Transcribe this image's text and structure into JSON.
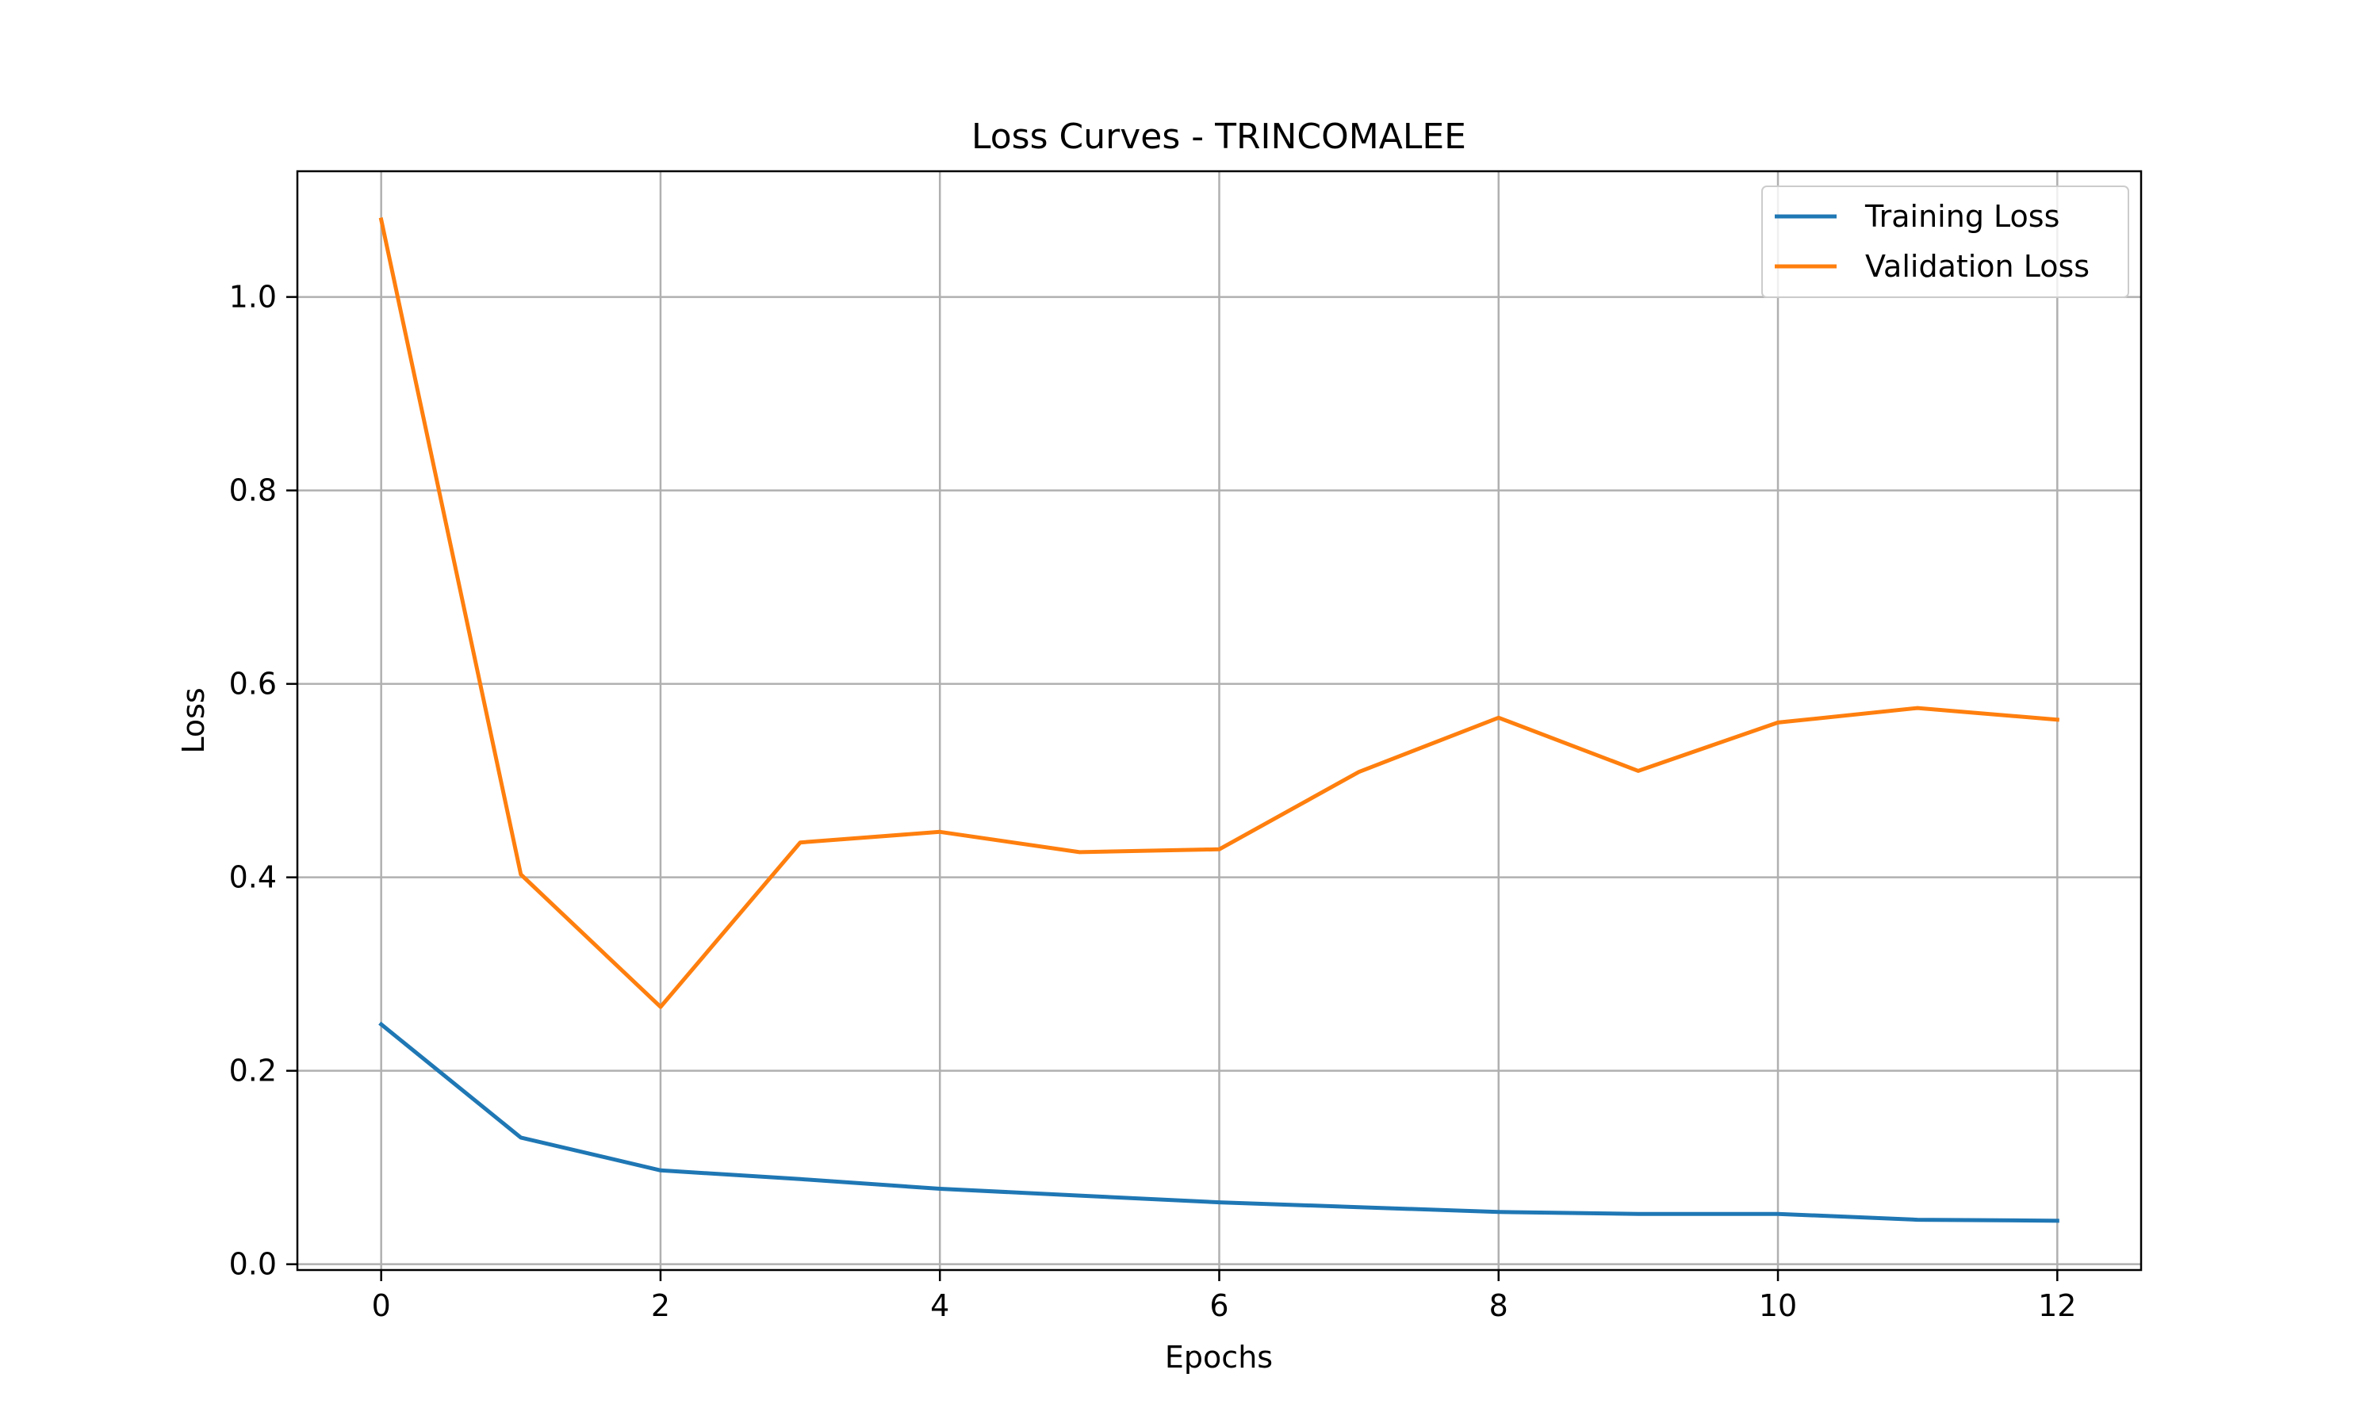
{
  "chart_data": {
    "type": "line",
    "title": "Loss Curves - TRINCOMALEE",
    "xlabel": "Epochs",
    "ylabel": "Loss",
    "x": [
      0,
      1,
      2,
      3,
      4,
      5,
      6,
      7,
      8,
      9,
      10,
      11,
      12
    ],
    "xlim": [
      -0.6,
      12.6
    ],
    "ylim": [
      -0.006,
      1.13
    ],
    "xticks": [
      0,
      2,
      4,
      6,
      8,
      10,
      12
    ],
    "xtick_labels": [
      "0",
      "2",
      "4",
      "6",
      "8",
      "10",
      "12"
    ],
    "yticks": [
      0.0,
      0.2,
      0.4,
      0.6,
      0.8,
      1.0
    ],
    "ytick_labels": [
      "0.0",
      "0.2",
      "0.4",
      "0.6",
      "0.8",
      "1.0"
    ],
    "grid": true,
    "legend_position": "top-right",
    "series": [
      {
        "name": "Training Loss",
        "color": "#1f77b4",
        "values": [
          0.248,
          0.131,
          0.097,
          0.088,
          0.078,
          0.071,
          0.064,
          0.059,
          0.054,
          0.052,
          0.052,
          0.046,
          0.045
        ]
      },
      {
        "name": "Validation Loss",
        "color": "#ff7f0e",
        "values": [
          1.08,
          0.403,
          0.266,
          0.436,
          0.447,
          0.426,
          0.429,
          0.509,
          0.565,
          0.51,
          0.56,
          0.575,
          0.563
        ]
      }
    ]
  }
}
